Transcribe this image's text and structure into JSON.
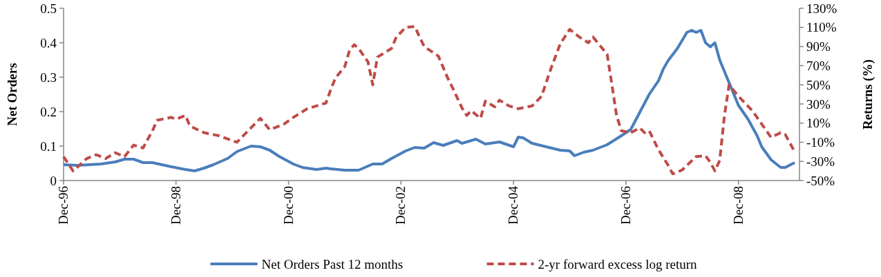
{
  "chart_data": {
    "type": "line",
    "ylabel": "Net Orders",
    "y2label": "Returns (%)",
    "legend": "bottom",
    "xlim": [
      "1996-12",
      "2010-01"
    ],
    "xticks": [
      {
        "value": "1996-12",
        "label": "Dec-96"
      },
      {
        "value": "1998-12",
        "label": "Dec-98"
      },
      {
        "value": "2000-12",
        "label": "Dec-00"
      },
      {
        "value": "2002-12",
        "label": "Dec-02"
      },
      {
        "value": "2004-12",
        "label": "Dec-04"
      },
      {
        "value": "2006-12",
        "label": "Dec-06"
      },
      {
        "value": "2008-12",
        "label": "Dec-08"
      }
    ],
    "ylim": [
      0,
      0.5
    ],
    "yticks": [
      0,
      0.1,
      0.2,
      0.3,
      0.4,
      0.5
    ],
    "y2lim": [
      -50,
      130
    ],
    "y2ticks": [
      {
        "value": -50,
        "label": "-50%"
      },
      {
        "value": -30,
        "label": "-30%"
      },
      {
        "value": -10,
        "label": "-10%"
      },
      {
        "value": 10,
        "label": "10%"
      },
      {
        "value": 30,
        "label": "30%"
      },
      {
        "value": 50,
        "label": "50%"
      },
      {
        "value": 70,
        "label": "70%"
      },
      {
        "value": 90,
        "label": "90%"
      },
      {
        "value": 110,
        "label": "110%"
      },
      {
        "value": 130,
        "label": "130%"
      }
    ],
    "series": [
      {
        "name": "Net Orders Past 12 months",
        "color": "#4a7ebb",
        "line_style": "solid",
        "x": [
          "1996-12",
          "1997-03",
          "1997-08",
          "1997-11",
          "1998-01",
          "1998-03",
          "1998-05",
          "1998-07",
          "1998-11",
          "1999-02",
          "1999-04",
          "1999-06",
          "1999-08",
          "1999-11",
          "2000-01",
          "2000-04",
          "2000-06",
          "2000-08",
          "2000-10",
          "2001-01",
          "2001-03",
          "2001-06",
          "2001-08",
          "2001-09",
          "2001-12",
          "2002-03",
          "2002-06",
          "2002-08",
          "2002-10",
          "2003-01",
          "2003-03",
          "2003-05",
          "2003-07",
          "2003-09",
          "2003-12",
          "2004-01",
          "2004-04",
          "2004-06",
          "2004-09",
          "2004-12",
          "2005-01",
          "2005-02",
          "2005-04",
          "2005-07",
          "2005-10",
          "2005-12",
          "2006-01",
          "2006-03",
          "2006-05",
          "2006-08",
          "2006-11",
          "2007-01",
          "2007-03",
          "2007-05",
          "2007-07",
          "2007-08",
          "2007-09",
          "2007-11",
          "2008-01",
          "2008-02",
          "2008-03",
          "2008-04",
          "2008-05",
          "2008-06",
          "2008-07",
          "2008-08",
          "2008-10",
          "2008-12",
          "2009-02",
          "2009-04",
          "2009-05",
          "2009-07",
          "2009-09",
          "2009-10",
          "2009-12"
        ],
        "values": [
          0.046,
          0.044,
          0.048,
          0.054,
          0.062,
          0.062,
          0.052,
          0.052,
          0.04,
          0.032,
          0.028,
          0.036,
          0.046,
          0.064,
          0.084,
          0.1,
          0.098,
          0.088,
          0.07,
          0.048,
          0.038,
          0.032,
          0.036,
          0.034,
          0.03,
          0.03,
          0.048,
          0.048,
          0.064,
          0.086,
          0.096,
          0.094,
          0.11,
          0.102,
          0.116,
          0.108,
          0.12,
          0.106,
          0.112,
          0.098,
          0.126,
          0.124,
          0.108,
          0.098,
          0.088,
          0.086,
          0.072,
          0.082,
          0.088,
          0.104,
          0.13,
          0.148,
          0.198,
          0.25,
          0.29,
          0.324,
          0.348,
          0.384,
          0.43,
          0.436,
          0.43,
          0.436,
          0.4,
          0.388,
          0.4,
          0.35,
          0.284,
          0.218,
          0.178,
          0.13,
          0.098,
          0.06,
          0.038,
          0.038,
          0.052
        ]
      },
      {
        "name": "2-yr forward excess log return",
        "color": "#be4b48",
        "line_style": "dashed",
        "axis": "y2",
        "x": [
          "1996-12",
          "1997-02",
          "1997-05",
          "1997-07",
          "1997-09",
          "1997-11",
          "1998-01",
          "1998-03",
          "1998-05",
          "1998-07",
          "1998-08",
          "1998-11",
          "1998-12",
          "1999-02",
          "1999-03",
          "1999-06",
          "1999-09",
          "2000-01",
          "2000-03",
          "2000-06",
          "2000-08",
          "2000-11",
          "2001-01",
          "2001-04",
          "2001-06",
          "2001-08",
          "2001-09",
          "2001-10",
          "2001-12",
          "2002-01",
          "2002-02",
          "2002-03",
          "2002-05",
          "2002-06",
          "2002-07",
          "2002-10",
          "2002-11",
          "2003-01",
          "2003-03",
          "2003-04",
          "2003-05",
          "2003-08",
          "2003-10",
          "2003-11",
          "2004-01",
          "2004-02",
          "2004-03",
          "2004-05",
          "2004-06",
          "2004-08",
          "2004-09",
          "2004-11",
          "2005-01",
          "2005-04",
          "2005-06",
          "2005-08",
          "2005-10",
          "2005-12",
          "2006-02",
          "2006-04",
          "2006-05",
          "2006-08",
          "2006-09",
          "2006-10",
          "2006-11",
          "2007-01",
          "2007-03",
          "2007-04",
          "2007-05",
          "2007-07",
          "2007-09",
          "2007-10",
          "2007-12",
          "2008-03",
          "2008-05",
          "2008-06",
          "2008-07",
          "2008-08",
          "2008-09",
          "2008-10",
          "2008-12",
          "2009-03",
          "2009-05",
          "2009-07",
          "2009-09",
          "2009-10",
          "2009-12"
        ],
        "values": [
          -25,
          -40,
          -27,
          -23,
          -27,
          -21,
          -25,
          -13,
          -16,
          2,
          13,
          16,
          14,
          18,
          7,
          0,
          -3,
          -10,
          0,
          15,
          3,
          9,
          16,
          25,
          28,
          31,
          45,
          57,
          69,
          86,
          92,
          88,
          74,
          50,
          79,
          88,
          100,
          110,
          111,
          100,
          90,
          80,
          57,
          47,
          26,
          18,
          23,
          15,
          33,
          27,
          34,
          28,
          25,
          28,
          38,
          67,
          93,
          108,
          100,
          94,
          100,
          82,
          50,
          18,
          2,
          0,
          5,
          0,
          2,
          -18,
          -34,
          -43,
          -39,
          -25,
          -24,
          -31,
          -40,
          -29,
          18,
          50,
          38,
          23,
          9,
          -5,
          0,
          -2,
          -20
        ]
      }
    ]
  }
}
